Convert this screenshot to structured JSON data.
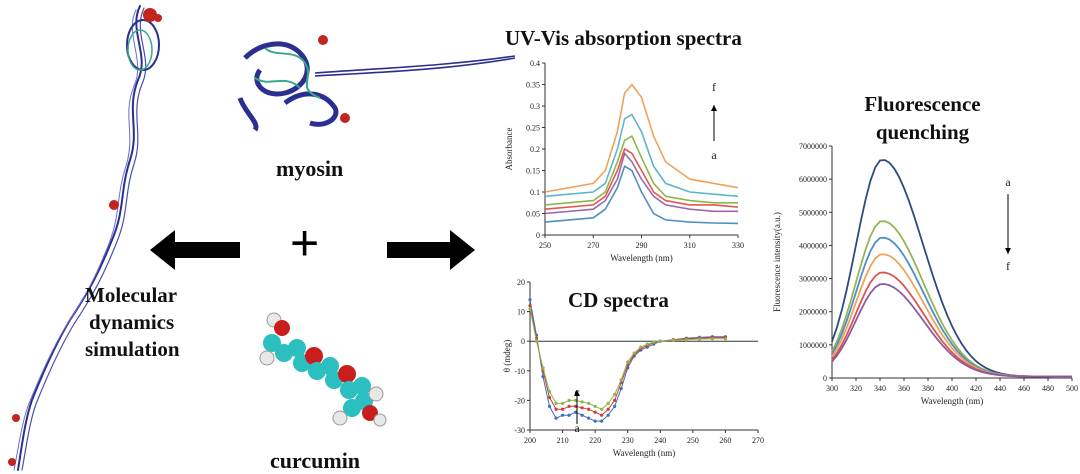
{
  "labels": {
    "uv_title": "UV-Vis absorption spectra",
    "fl_title_1": "Fluorescence",
    "fl_title_2": "quenching",
    "cd_title": "CD spectra",
    "myosin": "myosin",
    "curcumin": "curcumin",
    "md_1": "Molecular",
    "md_2": "dynamics",
    "md_3": "simulation",
    "plus": "+"
  },
  "colors": {
    "protein": "#2b2f8f",
    "helix_green": "#3aa88a",
    "helix_red": "#c0261f",
    "carbon": "#2bbfbf",
    "oxygen": "#c81e1e",
    "hydrogen": "#e8e8e8",
    "arrow": "#000000"
  },
  "chart_data": [
    {
      "type": "line",
      "xlabel": "Wavelength (nm)",
      "ylabel": "Absorbance",
      "xticks": [
        "250",
        "270",
        "290",
        "310",
        "330"
      ],
      "yticks": [
        "0",
        "0.05",
        "0.1",
        "0.15",
        "0.2",
        "0.25",
        "0.3",
        "0.35",
        "0.4"
      ],
      "xlim": [
        250,
        330
      ],
      "ylim": [
        0,
        0.4
      ],
      "annot_top": "f",
      "annot_bottom": "a",
      "series": [
        {
          "color": "#4f8fc6",
          "x": [
            250,
            270,
            275,
            280,
            283,
            286,
            290,
            295,
            300,
            310,
            320,
            330
          ],
          "y": [
            0.03,
            0.04,
            0.06,
            0.11,
            0.16,
            0.15,
            0.1,
            0.05,
            0.035,
            0.03,
            0.028,
            0.027
          ]
        },
        {
          "color": "#9a6aa6",
          "x": [
            250,
            270,
            275,
            280,
            283,
            286,
            290,
            295,
            300,
            310,
            320,
            330
          ],
          "y": [
            0.05,
            0.06,
            0.08,
            0.13,
            0.19,
            0.17,
            0.13,
            0.09,
            0.07,
            0.06,
            0.055,
            0.055
          ]
        },
        {
          "color": "#e5564f",
          "x": [
            250,
            270,
            275,
            280,
            283,
            286,
            290,
            295,
            300,
            310,
            320,
            330
          ],
          "y": [
            0.06,
            0.07,
            0.09,
            0.15,
            0.2,
            0.19,
            0.15,
            0.1,
            0.08,
            0.07,
            0.07,
            0.065
          ]
        },
        {
          "color": "#8fb54a",
          "x": [
            250,
            270,
            275,
            280,
            283,
            286,
            290,
            295,
            300,
            310,
            320,
            330
          ],
          "y": [
            0.07,
            0.08,
            0.1,
            0.17,
            0.22,
            0.23,
            0.18,
            0.12,
            0.09,
            0.08,
            0.075,
            0.075
          ]
        },
        {
          "color": "#5fb5c9",
          "x": [
            250,
            270,
            275,
            280,
            283,
            286,
            290,
            295,
            300,
            310,
            320,
            330
          ],
          "y": [
            0.09,
            0.1,
            0.12,
            0.2,
            0.27,
            0.28,
            0.24,
            0.16,
            0.12,
            0.1,
            0.095,
            0.09
          ]
        },
        {
          "color": "#f0a25a",
          "x": [
            250,
            270,
            275,
            280,
            283,
            286,
            290,
            295,
            300,
            310,
            320,
            330
          ],
          "y": [
            0.1,
            0.12,
            0.15,
            0.24,
            0.33,
            0.35,
            0.32,
            0.23,
            0.17,
            0.13,
            0.12,
            0.11
          ]
        }
      ]
    },
    {
      "type": "line",
      "xlabel": "Wavelength (nm)",
      "ylabel": "Fluorescence intensity(a.u.)",
      "xticks": [
        "300",
        "320",
        "340",
        "360",
        "380",
        "400",
        "420",
        "440",
        "460",
        "480",
        "500"
      ],
      "yticks": [
        "0",
        "1000000",
        "2000000",
        "3000000",
        "4000000",
        "5000000",
        "6000000",
        "7000000"
      ],
      "xlim": [
        300,
        500
      ],
      "ylim": [
        0,
        7000000
      ],
      "annot_top": "a",
      "annot_bottom": "f",
      "series": [
        {
          "color": "#2e4a7d",
          "peak": 6550000
        },
        {
          "color": "#93b552",
          "peak": 4700000
        },
        {
          "color": "#4d8ec8",
          "peak": 4200000
        },
        {
          "color": "#f2a35a",
          "peak": 3700000
        },
        {
          "color": "#d9554f",
          "peak": 3150000
        },
        {
          "color": "#8c5aa3",
          "peak": 2800000
        }
      ]
    },
    {
      "type": "line",
      "xlabel": "Wavelength (nm)",
      "ylabel": "θ (mdeg)",
      "xticks": [
        "200",
        "210",
        "220",
        "230",
        "240",
        "250",
        "260",
        "270"
      ],
      "yticks": [
        "-30",
        "-20",
        "-10",
        "0",
        "10",
        "20"
      ],
      "xlim": [
        200,
        270
      ],
      "ylim": [
        -30,
        20
      ],
      "annot_top": "c",
      "annot_bottom": "a",
      "series": [
        {
          "color": "#3b6fc0",
          "x": [
            200,
            202,
            204,
            206,
            208,
            210,
            212,
            214,
            216,
            218,
            220,
            222,
            224,
            226,
            228,
            230,
            232,
            234,
            236,
            238,
            240,
            244,
            248,
            252,
            256,
            260
          ],
          "y": [
            14,
            2,
            -12,
            -22,
            -26,
            -25,
            -25,
            -24,
            -25,
            -26,
            -27,
            -27,
            -25,
            -22,
            -16,
            -9,
            -5,
            -3,
            -2,
            -1,
            0,
            0.5,
            1,
            1.3,
            1.5,
            1.5
          ]
        },
        {
          "color": "#cf3b35",
          "x": [
            200,
            202,
            204,
            206,
            208,
            210,
            212,
            214,
            216,
            218,
            220,
            222,
            224,
            226,
            228,
            230,
            232,
            234,
            236,
            238,
            240,
            244,
            248,
            252,
            256,
            260
          ],
          "y": [
            12,
            1,
            -10,
            -19,
            -23,
            -23,
            -22,
            -22,
            -22.5,
            -23,
            -24,
            -25,
            -23,
            -20,
            -14,
            -8,
            -4.5,
            -2.5,
            -1.5,
            -0.5,
            0,
            0.5,
            0.8,
            1,
            1.2,
            1.2
          ]
        },
        {
          "color": "#8fb54a",
          "x": [
            200,
            202,
            204,
            206,
            208,
            210,
            212,
            214,
            216,
            218,
            220,
            222,
            224,
            226,
            228,
            230,
            232,
            234,
            236,
            238,
            240,
            244,
            248,
            252,
            256,
            260
          ],
          "y": [
            11,
            0,
            -9,
            -17,
            -21,
            -21,
            -20,
            -20,
            -20.5,
            -21,
            -22,
            -23,
            -21,
            -18,
            -13,
            -7,
            -4,
            -2,
            -1,
            -0.3,
            0,
            0.3,
            0.5,
            0.7,
            0.8,
            0.8
          ]
        }
      ]
    }
  ]
}
